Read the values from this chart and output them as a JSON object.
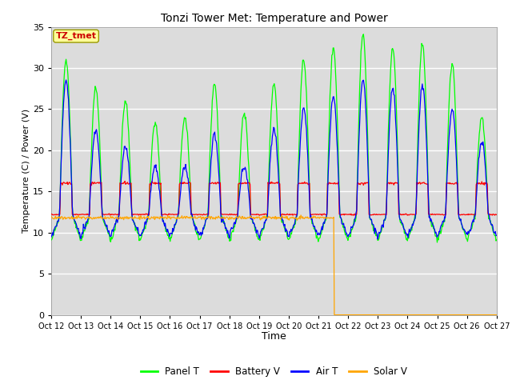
{
  "title": "Tonzi Tower Met: Temperature and Power",
  "xlabel": "Time",
  "ylabel": "Temperature (C) / Power (V)",
  "ylim": [
    0,
    35
  ],
  "yticks": [
    0,
    5,
    10,
    15,
    20,
    25,
    30,
    35
  ],
  "xtick_labels": [
    "Oct 12",
    "Oct 13",
    "Oct 14",
    "Oct 15",
    "Oct 16",
    "Oct 17",
    "Oct 18",
    "Oct 19",
    "Oct 20",
    "Oct 21",
    "Oct 22",
    "Oct 23",
    "Oct 24",
    "Oct 25",
    "Oct 26",
    "Oct 27"
  ],
  "bg_color": "#dcdcdc",
  "fig_bg": "#ffffff",
  "panel_T_color": "#00ff00",
  "battery_V_color": "#ff0000",
  "air_T_color": "#0000ff",
  "solar_V_color": "#ffa500",
  "legend_label_file": "TZ_tmet",
  "legend_label_file_color": "#cc0000",
  "legend_label_file_bg": "#ffff99",
  "day_peaks_panel": [
    31,
    27.5,
    26,
    23.5,
    24,
    28,
    24.5,
    28,
    31,
    32.5,
    34,
    32.5,
    33,
    30.5,
    24
  ],
  "day_peaks_air": [
    28.5,
    22.5,
    20.5,
    18,
    18,
    22,
    18,
    22.5,
    25,
    26.5,
    28.5,
    27.5,
    28,
    25,
    21
  ],
  "night_base": 12.0,
  "night_min": 9.0,
  "batt_day": 16.0,
  "batt_night": 12.2,
  "solar_flat": 11.8,
  "solar_drop_day": 9
}
